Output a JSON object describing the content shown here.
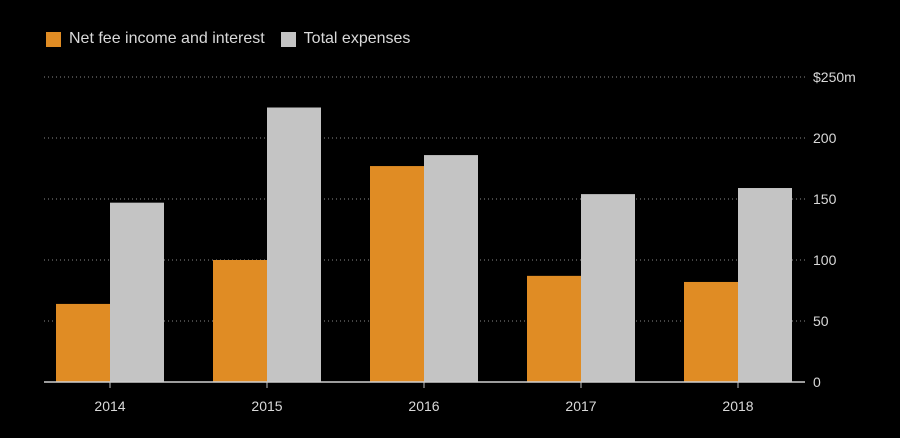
{
  "chart_data": {
    "type": "bar",
    "title": "",
    "xlabel": "",
    "ylabel": "",
    "categories": [
      "2014",
      "2015",
      "2016",
      "2017",
      "2018"
    ],
    "series": [
      {
        "name": "Net fee income and interest",
        "color": "#e08c24",
        "values": [
          64,
          100,
          177,
          87,
          82
        ]
      },
      {
        "name": "Total expenses",
        "color": "#c4c4c4",
        "values": [
          147,
          225,
          186,
          154,
          159
        ]
      }
    ],
    "ylim": [
      0,
      250
    ],
    "yticks": [
      0,
      50,
      100,
      150,
      200,
      250
    ],
    "ytick_labels": [
      "0",
      "50",
      "100",
      "150",
      "200",
      "$250m"
    ],
    "grid": true,
    "grid_style": "dotted",
    "legend_position": "top-left",
    "y_axis_side": "right",
    "background": "#000000"
  }
}
